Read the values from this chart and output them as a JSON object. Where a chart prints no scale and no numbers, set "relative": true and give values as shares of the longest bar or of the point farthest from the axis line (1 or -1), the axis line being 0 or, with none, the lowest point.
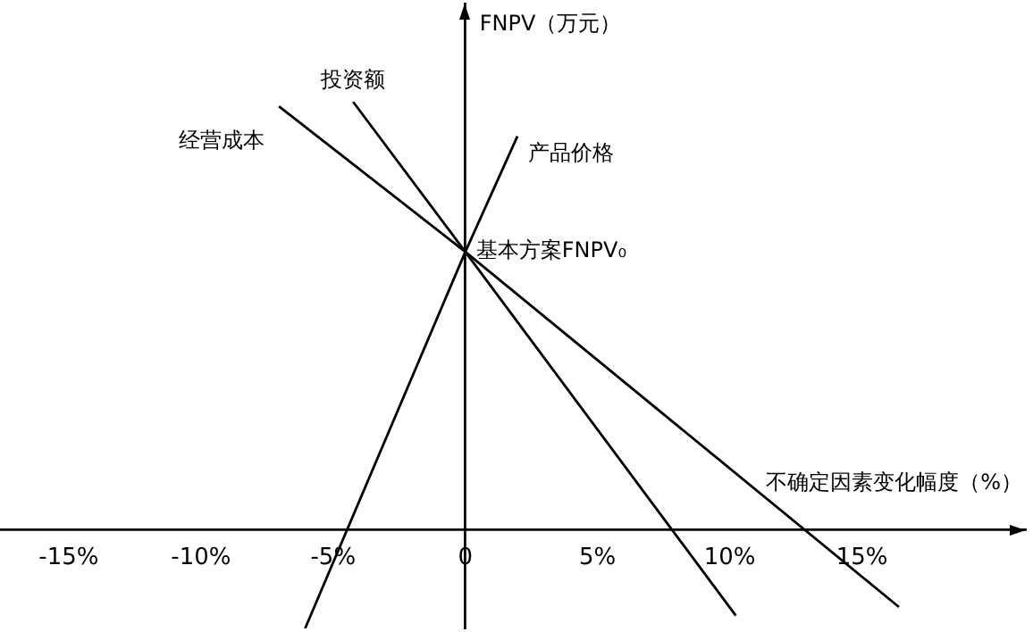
{
  "chart_data": {
    "type": "line",
    "relative": true,
    "xlabel": "不确定因素变化幅度（%）",
    "ylabel": "FNPV（万元）",
    "xlim": [
      -17.6,
      21.2
    ],
    "xticks": [
      {
        "value": -15,
        "label": "-15%"
      },
      {
        "value": -10,
        "label": "-10%"
      },
      {
        "value": -5,
        "label": "-5%"
      },
      {
        "value": 0,
        "label": "0"
      },
      {
        "value": 5,
        "label": "5%"
      },
      {
        "value": 10,
        "label": "10%"
      },
      {
        "value": 15,
        "label": "15%"
      }
    ],
    "tick_labels": "x",
    "marker": "none",
    "line_style": "solid",
    "legend": false,
    "series": [
      {
        "name": "经营成本",
        "color": "#000000",
        "x": [
          -7.05,
          0,
          16.4
        ],
        "values": [
          0.99,
          0.65,
          -0.18
        ]
      },
      {
        "name": "投资额",
        "color": "#000000",
        "x": [
          -4.24,
          0,
          10.23
        ],
        "values": [
          1,
          0.65,
          -0.2
        ]
      },
      {
        "name": "产品价格",
        "color": "#000000",
        "x": [
          -6.06,
          0,
          1.97
        ],
        "values": [
          -0.23,
          0.65,
          0.92
        ]
      }
    ],
    "annotations": [
      {
        "text": "基本方案FNPV₀",
        "x": 0,
        "y": 0.65
      }
    ]
  }
}
